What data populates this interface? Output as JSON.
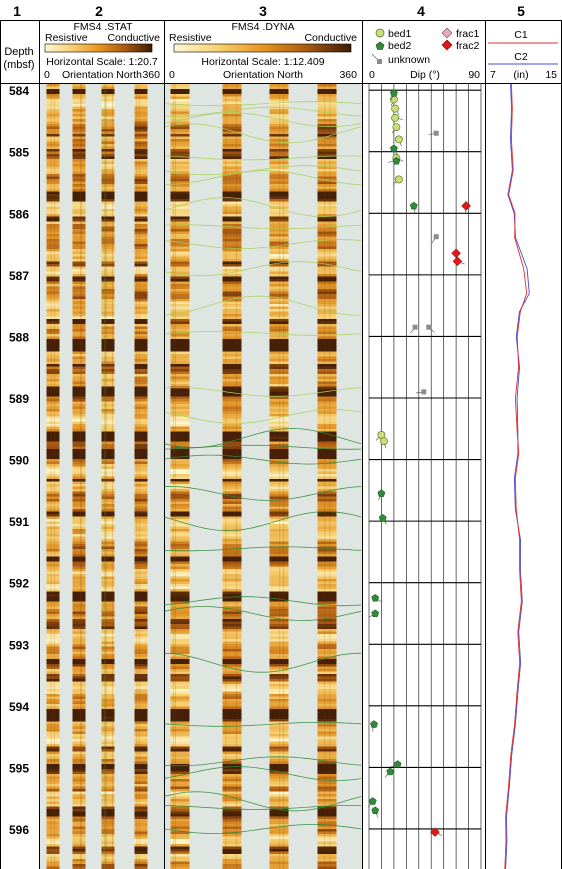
{
  "track_numbers": [
    "1",
    "2",
    "3",
    "4",
    "5"
  ],
  "depth_header": {
    "line1": "Depth",
    "line2": "(mbsf)"
  },
  "depth_ticks": [
    584,
    585,
    586,
    587,
    588,
    589,
    590,
    591,
    592,
    593,
    594,
    595,
    596
  ],
  "depth_range": [
    583.9,
    596.65
  ],
  "stat": {
    "title": "FMS4 .STAT",
    "left": "Resistive",
    "right": "Conductive",
    "scale": "Horizontal Scale: 1:20.7",
    "orient_min": "0",
    "orient_label": "Orientation North",
    "orient_max": "360"
  },
  "dyna": {
    "title": "FMS4 .DYNA",
    "left": "Resistive",
    "right": "Conductive",
    "scale": "Horizontal Scale:  1:12.409",
    "orient_min": "0",
    "orient_label": "Orientation North",
    "orient_max": "360"
  },
  "colors": {
    "bed1": "#c9e07a",
    "bed2": "#2f8a3a",
    "unknown": "#8c8c8c",
    "frac1": "#e8a8c0",
    "frac2": "#e01818",
    "c1": "#e03030",
    "c2": "#4a4ad0",
    "pad_dark": "#6b3306",
    "pad_light": "#f3c866",
    "gap": "#dfe6e1"
  },
  "chart_data": {
    "type": "scatter",
    "title": "",
    "xlabel": "Dip (°)",
    "ylabel": "Depth (mbsf)",
    "xlim": [
      0,
      90
    ],
    "ylim": [
      596.65,
      583.9
    ],
    "legend": [
      {
        "key": "bed1",
        "label": "bed1",
        "marker": "circle"
      },
      {
        "key": "bed2",
        "label": "bed2",
        "marker": "pentagon"
      },
      {
        "key": "unknown",
        "label": "unknown",
        "marker": "square"
      },
      {
        "key": "frac1",
        "label": "frac1",
        "marker": "diamond"
      },
      {
        "key": "frac2",
        "label": "frac2",
        "marker": "diamond"
      }
    ],
    "series": [
      {
        "name": "bed1",
        "points": [
          [
            20,
            584.15
          ],
          [
            21,
            584.3
          ],
          [
            21,
            584.45
          ],
          [
            22,
            584.6
          ],
          [
            24,
            584.8
          ],
          [
            22,
            585.1
          ],
          [
            24,
            585.45
          ],
          [
            10,
            589.6
          ],
          [
            12,
            589.7
          ]
        ]
      },
      {
        "name": "bed2",
        "points": [
          [
            20,
            584.05
          ],
          [
            20,
            584.95
          ],
          [
            22,
            585.15
          ],
          [
            36,
            585.88
          ],
          [
            10,
            590.55
          ],
          [
            11,
            590.95
          ],
          [
            5,
            592.25
          ],
          [
            5,
            592.5
          ],
          [
            4,
            594.3
          ],
          [
            23,
            594.95
          ],
          [
            17,
            595.07
          ],
          [
            3,
            595.55
          ],
          [
            5,
            595.7
          ]
        ]
      },
      {
        "name": "unknown",
        "points": [
          [
            54,
            584.7
          ],
          [
            54,
            586.38
          ],
          [
            37,
            587.85
          ],
          [
            48,
            587.85
          ],
          [
            44,
            588.9
          ]
        ]
      },
      {
        "name": "frac1",
        "points": []
      },
      {
        "name": "frac2",
        "points": [
          [
            78,
            585.88
          ],
          [
            70,
            586.65
          ],
          [
            71,
            586.78
          ],
          [
            53,
            596.05
          ]
        ]
      }
    ],
    "caliper": {
      "label_c1": "C1",
      "label_c2": "C2",
      "xmin_label": "7",
      "xunit": "(in)",
      "xmax_label": "15",
      "xlim": [
        7,
        15
      ],
      "c1": [
        [
          583.9,
          9.6
        ],
        [
          584.3,
          9.7
        ],
        [
          584.8,
          9.6
        ],
        [
          585.3,
          9.8
        ],
        [
          585.7,
          9.3
        ],
        [
          586.0,
          10.0
        ],
        [
          586.4,
          10.0
        ],
        [
          586.9,
          11.0
        ],
        [
          587.3,
          11.4
        ],
        [
          587.6,
          10.6
        ],
        [
          588.0,
          10.3
        ],
        [
          588.5,
          10.4
        ],
        [
          589.0,
          10.1
        ],
        [
          589.5,
          10.2
        ],
        [
          589.9,
          10.5
        ],
        [
          590.3,
          10.0
        ],
        [
          590.8,
          10.2
        ],
        [
          591.3,
          10.5
        ],
        [
          591.8,
          10.6
        ],
        [
          592.3,
          10.7
        ],
        [
          592.8,
          10.4
        ],
        [
          593.3,
          10.5
        ],
        [
          593.8,
          10.3
        ],
        [
          594.3,
          9.9
        ],
        [
          594.8,
          9.6
        ],
        [
          595.3,
          9.2
        ],
        [
          595.8,
          9.0
        ],
        [
          596.2,
          8.9
        ],
        [
          596.65,
          8.9
        ]
      ],
      "c2": [
        [
          583.9,
          9.5
        ],
        [
          584.3,
          9.6
        ],
        [
          584.8,
          9.5
        ],
        [
          585.3,
          9.7
        ],
        [
          585.7,
          9.2
        ],
        [
          586.0,
          9.9
        ],
        [
          586.4,
          10.1
        ],
        [
          586.9,
          11.4
        ],
        [
          587.3,
          11.7
        ],
        [
          587.6,
          10.5
        ],
        [
          588.0,
          10.2
        ],
        [
          588.5,
          10.5
        ],
        [
          589.0,
          10.3
        ],
        [
          589.5,
          10.3
        ],
        [
          589.9,
          10.4
        ],
        [
          590.3,
          9.9
        ],
        [
          590.8,
          10.1
        ],
        [
          591.3,
          10.6
        ],
        [
          591.8,
          10.7
        ],
        [
          592.3,
          10.8
        ],
        [
          592.8,
          10.5
        ],
        [
          593.3,
          10.6
        ],
        [
          593.8,
          10.4
        ],
        [
          594.3,
          10.0
        ],
        [
          594.8,
          9.7
        ],
        [
          595.3,
          9.3
        ],
        [
          595.8,
          9.1
        ],
        [
          596.2,
          9.0
        ],
        [
          596.65,
          9.0
        ]
      ]
    },
    "bedding_depths_dyna": [
      584.22,
      584.35,
      584.48,
      584.7,
      585.1,
      585.3,
      585.42,
      585.9,
      586.22,
      586.5,
      586.9,
      587.5,
      587.95,
      588.9,
      589.3,
      589.65,
      589.8,
      590.0,
      590.55,
      591.0,
      591.45,
      592.3,
      592.5,
      593.3,
      594.3,
      594.9,
      595.1,
      595.55,
      595.65,
      596.0
    ]
  }
}
